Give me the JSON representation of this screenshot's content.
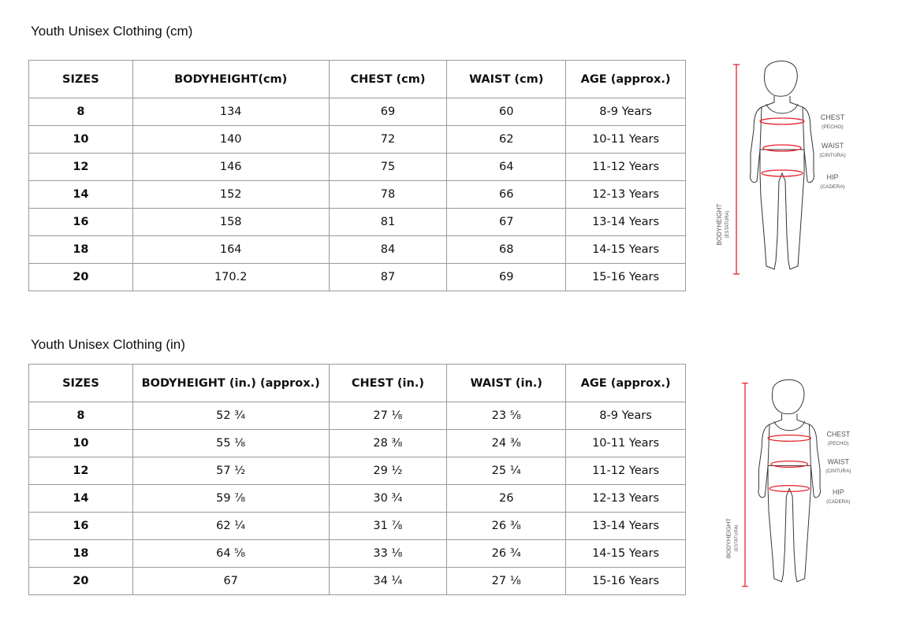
{
  "tables": [
    {
      "title": "Youth Unisex Clothing (cm)",
      "headers": [
        "SIZES",
        "BODYHEIGHT(cm)",
        "CHEST (cm)",
        "WAIST (cm)",
        "AGE (approx.)"
      ],
      "rows": [
        [
          "8",
          "134",
          "69",
          "60",
          "8-9 Years"
        ],
        [
          "10",
          "140",
          "72",
          "62",
          "10-11 Years"
        ],
        [
          "12",
          "146",
          "75",
          "64",
          "11-12 Years"
        ],
        [
          "14",
          "152",
          "78",
          "66",
          "12-13 Years"
        ],
        [
          "16",
          "158",
          "81",
          "67",
          "13-14 Years"
        ],
        [
          "18",
          "164",
          "84",
          "68",
          "14-15 Years"
        ],
        [
          "20",
          "170.2",
          "87",
          "69",
          "15-16 Years"
        ]
      ]
    },
    {
      "title": "Youth Unisex Clothing  (in)",
      "headers": [
        "SIZES",
        "BODYHEIGHT (in.) (approx.)",
        "CHEST (in.)",
        "WAIST (in.)",
        "AGE (approx.)"
      ],
      "rows": [
        [
          "8",
          "52 ¾",
          "27 ⅛",
          "23 ⅝",
          "8-9 Years"
        ],
        [
          "10",
          "55 ⅛",
          "28 ⅜",
          "24 ⅜",
          "10-11 Years"
        ],
        [
          "12",
          "57 ½",
          "29 ½",
          "25 ¼",
          "11-12 Years"
        ],
        [
          "14",
          "59 ⅞",
          "30 ¾",
          "26",
          "12-13 Years"
        ],
        [
          "16",
          "62 ¼",
          "31 ⅞",
          "26 ⅜",
          "13-14 Years"
        ],
        [
          "18",
          "64 ⅝",
          "33 ⅛",
          "26 ¾",
          "14-15 Years"
        ],
        [
          "20",
          "67",
          "34 ¼",
          "27 ⅛",
          "15-16 Years"
        ]
      ]
    }
  ],
  "figure": {
    "chest": "CHEST",
    "chest_es": "(PECHO)",
    "waist": "WAIST",
    "waist_es": "(CINTURA)",
    "hip": "HIP",
    "hip_es": "(CADERA)",
    "height": "BODYHEIGHT",
    "height_es": "(ESTATURA)",
    "accent_color": "#e8202a"
  }
}
